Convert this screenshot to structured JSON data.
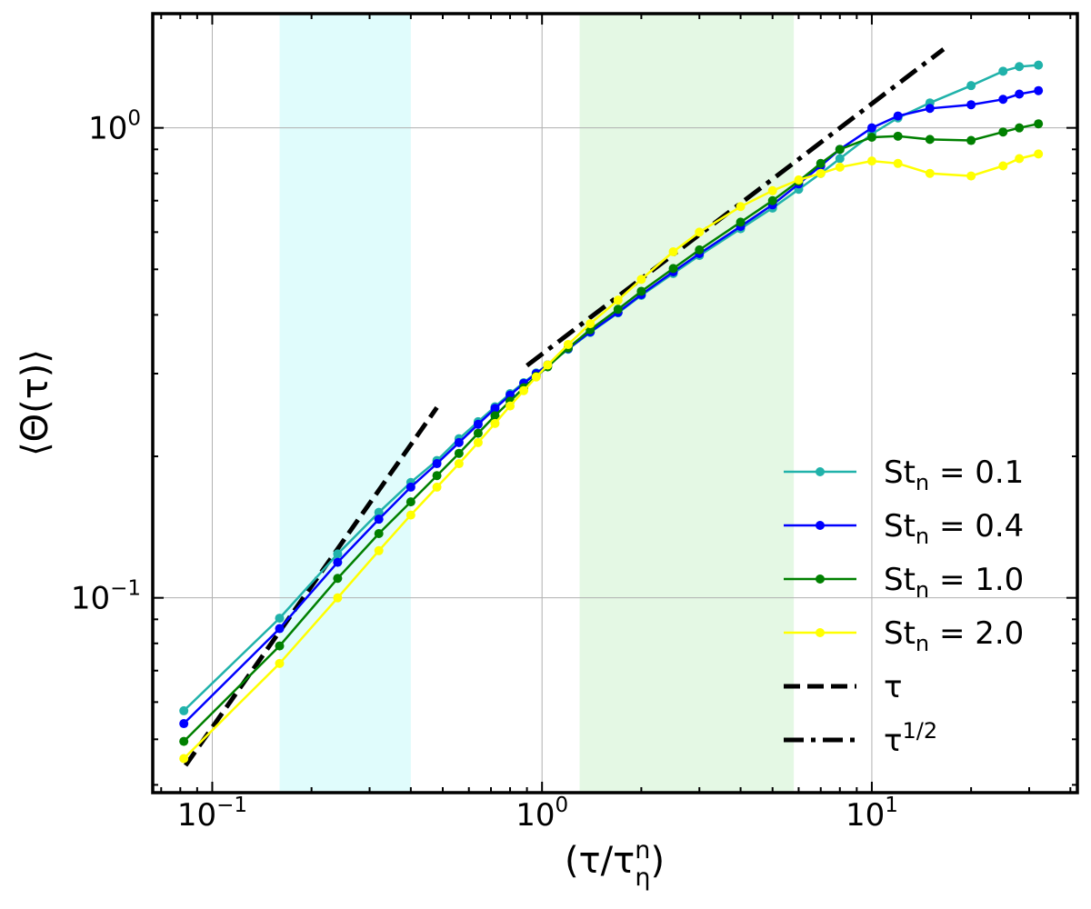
{
  "chart_data": {
    "type": "line",
    "xscale": "log",
    "yscale": "log",
    "xlim": [
      0.066,
      42
    ],
    "ylim": [
      0.0385,
      1.75
    ],
    "xlabel": "(τ/τ",
    "xlabel_sup": "n",
    "xlabel_sub": "η",
    "xlabel_close": ")",
    "ylabel": "⟨Θ(τ)⟩",
    "grid": true,
    "legend_position": "lower-right",
    "x_ticks": [
      {
        "base": "10",
        "exp": "−1",
        "value": 0.1
      },
      {
        "base": "10",
        "exp": "0",
        "value": 1
      },
      {
        "base": "10",
        "exp": "1",
        "value": 10
      }
    ],
    "y_ticks": [
      {
        "base": "10",
        "exp": "−1",
        "value": 0.1
      },
      {
        "base": "10",
        "exp": "0",
        "value": 1
      }
    ],
    "shaded_regions": [
      {
        "x_range": [
          0.16,
          0.4
        ],
        "color": "#e0fcfc"
      },
      {
        "x_range": [
          1.3,
          5.8
        ],
        "color": "#e4f8e4"
      }
    ],
    "series": [
      {
        "name": "St",
        "subscript": "n",
        "label_value": " = 0.1",
        "color": "#20b2aa",
        "x": [
          0.082,
          0.16,
          0.24,
          0.32,
          0.4,
          0.48,
          0.56,
          0.64,
          0.72,
          0.8,
          0.88,
          0.96,
          1.04,
          1.2,
          1.4,
          1.7,
          2.0,
          2.5,
          3.0,
          4.0,
          5.0,
          6.0,
          7.0,
          8.0,
          10.0,
          12.0,
          15.0,
          20.0,
          25.0,
          28.0,
          32.0
        ],
        "y": [
          0.0575,
          0.0905,
          0.124,
          0.152,
          0.176,
          0.196,
          0.218,
          0.237,
          0.255,
          0.272,
          0.287,
          0.301,
          0.313,
          0.338,
          0.367,
          0.404,
          0.44,
          0.49,
          0.535,
          0.61,
          0.675,
          0.74,
          0.8,
          0.86,
          0.97,
          1.05,
          1.13,
          1.23,
          1.32,
          1.35,
          1.36
        ]
      },
      {
        "name": "St",
        "subscript": "n",
        "label_value": " = 0.4",
        "color": "#0000ff",
        "x": [
          0.082,
          0.16,
          0.24,
          0.32,
          0.4,
          0.48,
          0.56,
          0.64,
          0.72,
          0.8,
          0.88,
          0.96,
          1.04,
          1.2,
          1.4,
          1.7,
          2.0,
          2.5,
          3.0,
          4.0,
          5.0,
          6.0,
          7.0,
          8.0,
          10.0,
          12.0,
          15.0,
          20.0,
          25.0,
          28.0,
          32.0
        ],
        "y": [
          0.054,
          0.086,
          0.119,
          0.147,
          0.172,
          0.193,
          0.214,
          0.234,
          0.253,
          0.27,
          0.286,
          0.3,
          0.313,
          0.339,
          0.368,
          0.405,
          0.442,
          0.494,
          0.54,
          0.617,
          0.686,
          0.76,
          0.83,
          0.9,
          1.0,
          1.06,
          1.1,
          1.12,
          1.15,
          1.18,
          1.2
        ]
      },
      {
        "name": "St",
        "subscript": "n",
        "label_value": " = 1.0",
        "color": "#008000",
        "x": [
          0.082,
          0.16,
          0.24,
          0.32,
          0.4,
          0.48,
          0.56,
          0.64,
          0.72,
          0.8,
          0.88,
          0.96,
          1.04,
          1.2,
          1.4,
          1.7,
          2.0,
          2.5,
          3.0,
          4.0,
          5.0,
          6.0,
          7.0,
          8.0,
          10.0,
          12.0,
          15.0,
          20.0,
          25.0,
          28.0,
          32.0
        ],
        "y": [
          0.0495,
          0.079,
          0.11,
          0.137,
          0.16,
          0.182,
          0.203,
          0.224,
          0.244,
          0.262,
          0.28,
          0.296,
          0.31,
          0.34,
          0.372,
          0.411,
          0.449,
          0.502,
          0.55,
          0.63,
          0.7,
          0.77,
          0.84,
          0.9,
          0.955,
          0.96,
          0.945,
          0.94,
          0.98,
          1.0,
          1.02
        ]
      },
      {
        "name": "St",
        "subscript": "n",
        "label_value": " = 2.0",
        "color": "#ffff00",
        "x": [
          0.082,
          0.16,
          0.24,
          0.32,
          0.4,
          0.48,
          0.56,
          0.64,
          0.72,
          0.8,
          0.88,
          0.96,
          1.04,
          1.2,
          1.4,
          1.7,
          2.0,
          2.5,
          3.0,
          4.0,
          5.0,
          6.0,
          7.0,
          8.0,
          10.0,
          12.0,
          15.0,
          20.0,
          25.0,
          28.0,
          32.0
        ],
        "y": [
          0.0455,
          0.0725,
          0.1,
          0.126,
          0.15,
          0.172,
          0.193,
          0.214,
          0.235,
          0.256,
          0.276,
          0.295,
          0.313,
          0.346,
          0.383,
          0.43,
          0.476,
          0.545,
          0.6,
          0.68,
          0.735,
          0.775,
          0.8,
          0.825,
          0.85,
          0.84,
          0.8,
          0.79,
          0.83,
          0.86,
          0.88
        ]
      }
    ],
    "reference_lines": [
      {
        "label": "τ",
        "label_sup": "",
        "style": "dashed",
        "color": "#000000",
        "x": [
          0.083,
          0.48
        ],
        "y": [
          0.044,
          0.254
        ]
      },
      {
        "label": "τ",
        "label_sup": "1/2",
        "style": "dashdot",
        "color": "#000000",
        "x": [
          0.9,
          16.5
        ],
        "y": [
          0.312,
          1.47
        ]
      }
    ]
  }
}
